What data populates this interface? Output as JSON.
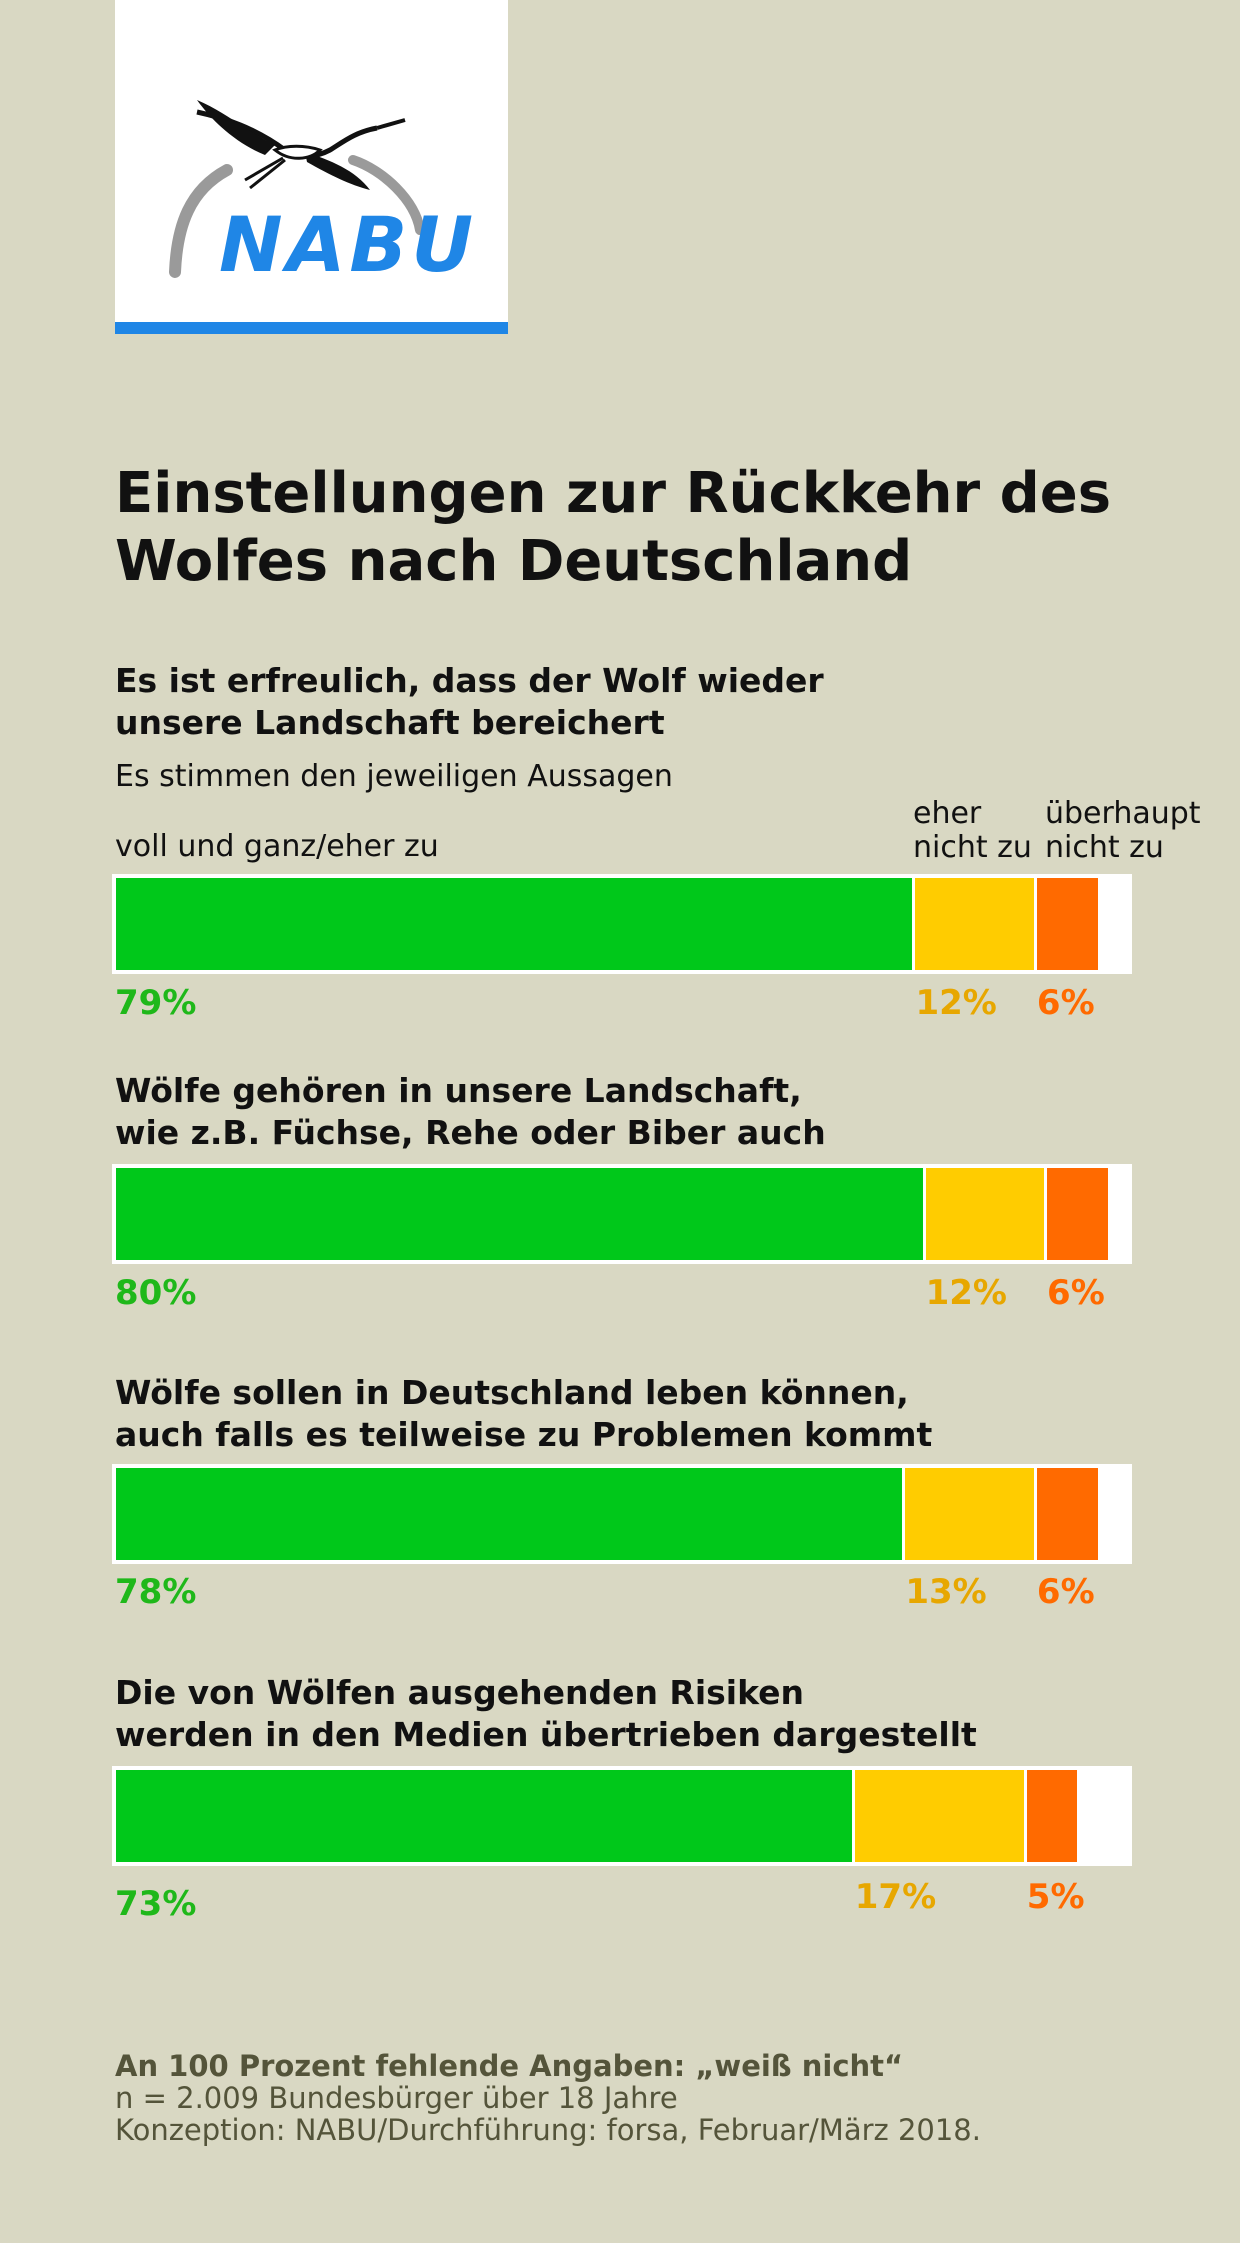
{
  "logo": {
    "text": "NABU"
  },
  "title_lines": [
    "Einstellungen zur Rückkehr des",
    "Wolfes nach Deutschland"
  ],
  "legend": {
    "intro": "Es stimmen den jeweiligen Aussagen",
    "labels": [
      {
        "lines": [
          "voll und ganz/eher zu"
        ]
      },
      {
        "lines": [
          "eher",
          "nicht zu"
        ]
      },
      {
        "lines": [
          "überhaupt",
          "nicht zu"
        ]
      }
    ]
  },
  "colors": {
    "background": "#d9d8c3",
    "agree": "#00c81a",
    "rather_not": "#ffcc00",
    "not_at_all": "#ff6a00",
    "agree_text": "#1fb81a",
    "rather_not_text": "#e7a700",
    "not_at_all_text": "#ff6a00",
    "logo_blue": "#1f86e6"
  },
  "chart_data": {
    "type": "bar",
    "orientation": "horizontal-stacked",
    "series": [
      {
        "name": "voll und ganz/eher zu",
        "values": [
          79,
          80,
          78,
          73
        ]
      },
      {
        "name": "eher nicht zu",
        "values": [
          12,
          12,
          13,
          17
        ]
      },
      {
        "name": "überhaupt nicht zu",
        "values": [
          6,
          6,
          6,
          5
        ]
      }
    ],
    "categories": [
      "Es ist erfreulich, dass der Wolf wieder unsere Landschaft bereichert",
      "Wölfe gehören in unsere Landschaft, wie z.B. Füchse, Rehe oder Biber auch",
      "Wölfe sollen in Deutschland leben können, auch falls es teilweise zu Problemen kommt",
      "Die von Wölfen ausgehenden Risiken werden in den Medien übertrieben dargestellt"
    ],
    "xlim": [
      0,
      100
    ],
    "questions": [
      {
        "lines": [
          "Es ist erfreulich, dass der Wolf wieder",
          "unsere Landschaft bereichert"
        ],
        "labels": [
          "79%",
          "12%",
          "6%"
        ]
      },
      {
        "lines": [
          "Wölfe gehören in unsere Landschaft,",
          "wie z.B. Füchse, Rehe oder Biber auch"
        ],
        "labels": [
          "80%",
          "12%",
          "6%"
        ]
      },
      {
        "lines": [
          "Wölfe sollen in Deutschland leben können,",
          "auch falls es teilweise zu Problemen kommt"
        ],
        "labels": [
          "78%",
          "13%",
          "6%"
        ]
      },
      {
        "lines": [
          "Die von Wölfen ausgehenden Risiken",
          "werden in den Medien übertrieben dargestellt"
        ],
        "labels": [
          "73%",
          "17%",
          "5%"
        ]
      }
    ]
  },
  "footer": {
    "note": "An 100 Prozent fehlende Angaben: „weiß nicht“",
    "sample": "n = 2.009 Bundesbürger über 18 Jahre",
    "source": "Konzeption: NABU/Durchführung: forsa, Februar/März 2018."
  }
}
